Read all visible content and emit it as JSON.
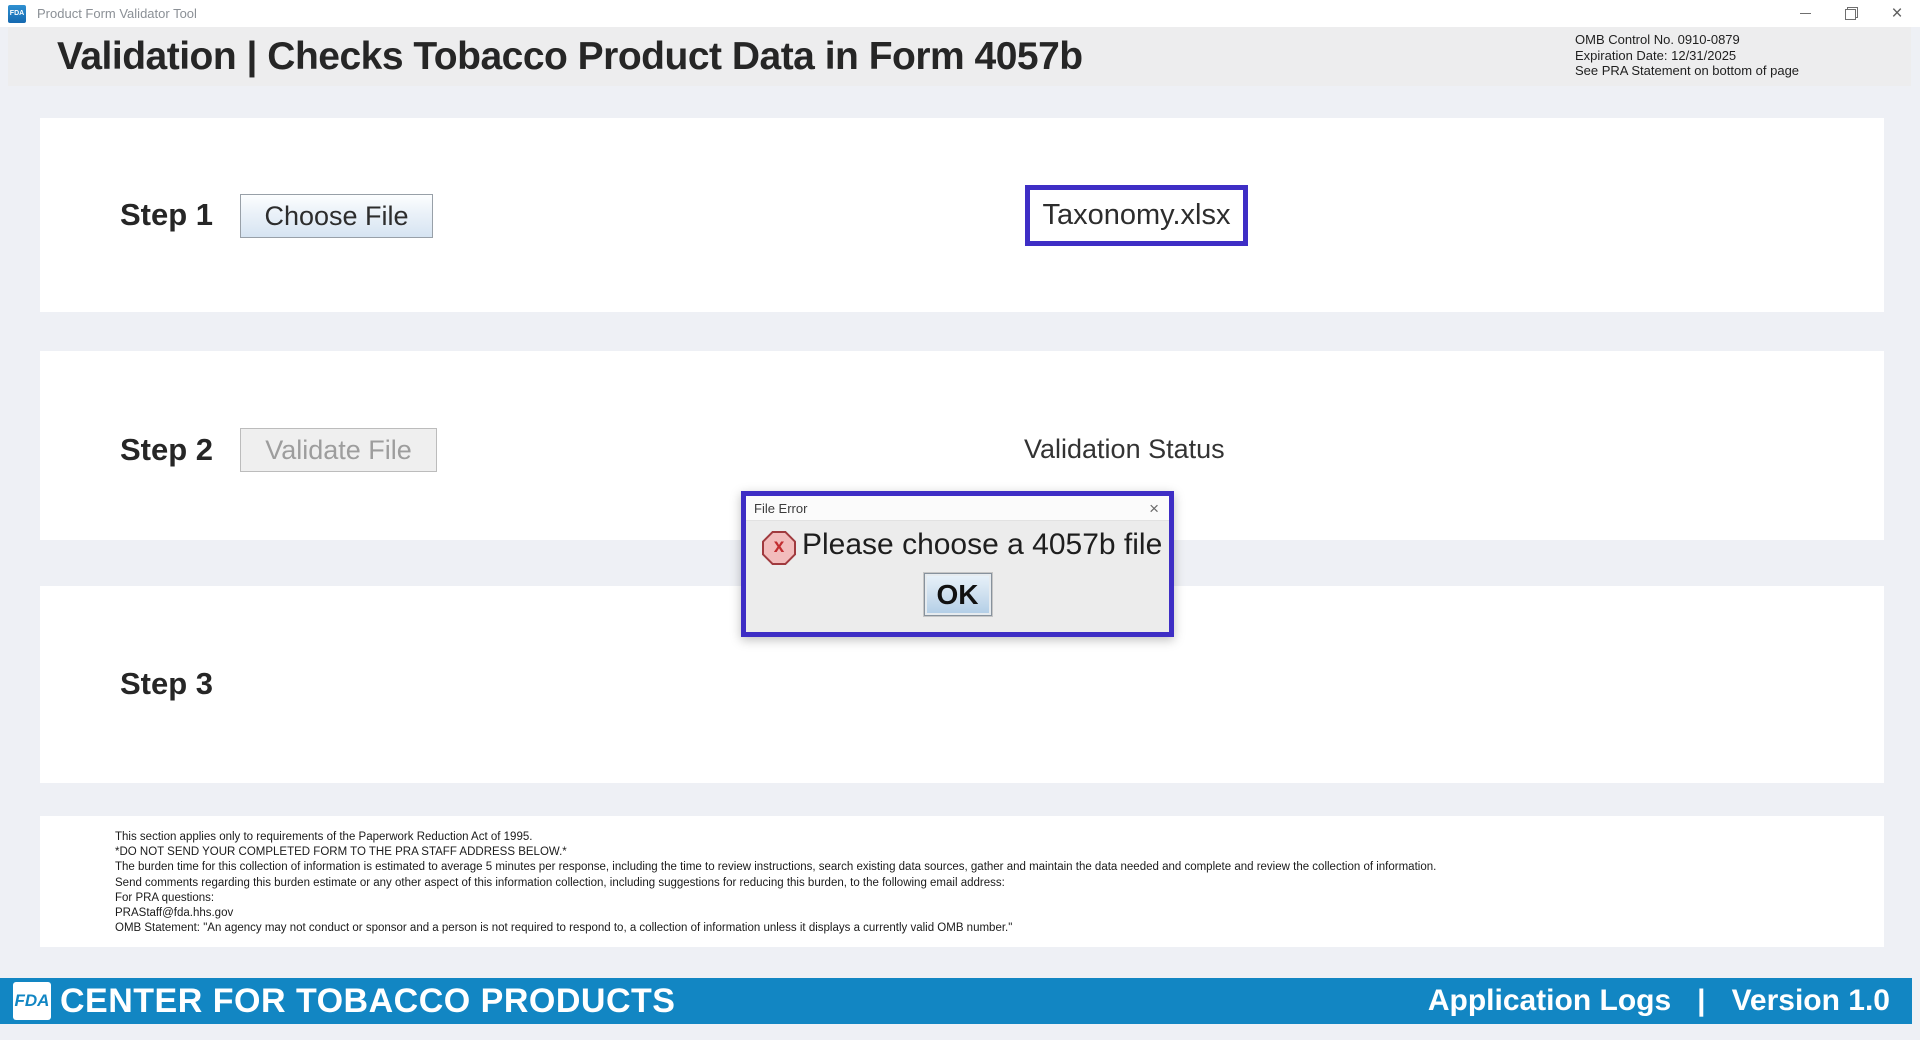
{
  "window": {
    "title": "Product Form Validator Tool",
    "app_icon_text": "FDA",
    "close_glyph": "×"
  },
  "header": {
    "title": "Validation | Checks Tobacco Product Data in Form 4057b",
    "omb_lines": [
      "OMB Control No. 0910-0879",
      "Expiration Date: 12/31/2025",
      "See PRA Statement on bottom of page"
    ]
  },
  "steps": {
    "step1": {
      "label": "Step 1",
      "button_label": "Choose File",
      "selected_file": "Taxonomy.xlsx"
    },
    "step2": {
      "label": "Step 2",
      "button_label": "Validate File",
      "status_label": "Validation Status"
    },
    "step3": {
      "label": "Step 3"
    }
  },
  "dialog": {
    "title": "File Error",
    "close_glyph": "×",
    "error_icon_glyph": "x",
    "message": "Please choose a 4057b file",
    "ok_label": "OK"
  },
  "pra": {
    "lines": [
      "This section applies only to requirements of the Paperwork Reduction Act of 1995.",
      "*DO NOT SEND YOUR COMPLETED FORM TO THE PRA STAFF ADDRESS BELOW.*",
      "The burden time for this collection of information is estimated to average 5 minutes per response, including the time to review instructions, search existing data sources, gather and maintain the data needed and complete and review the collection of information.",
      "Send comments regarding this burden estimate or any other aspect of this information collection, including suggestions for reducing this burden, to the following email address:",
      "For PRA questions:",
      "PRAStaff@fda.hhs.gov",
      "OMB Statement: \"An agency may not conduct or sponsor and a person is not required to respond to, a collection of information unless it displays a currently valid OMB number.\""
    ]
  },
  "footer": {
    "logo_text": "FDA",
    "org_name": "CENTER FOR TOBACCO PRODUCTS",
    "application_logs_label": "Application Logs",
    "divider": "|",
    "version_label": "Version 1.0"
  },
  "colors": {
    "annotation_purple": "#3e2ec5",
    "footer_blue": "#1286c3",
    "header_gray": "#ededee",
    "page_background": "#eef0f5",
    "error_icon_fill": "#f2bcbc",
    "error_icon_border": "#a03a3e"
  }
}
